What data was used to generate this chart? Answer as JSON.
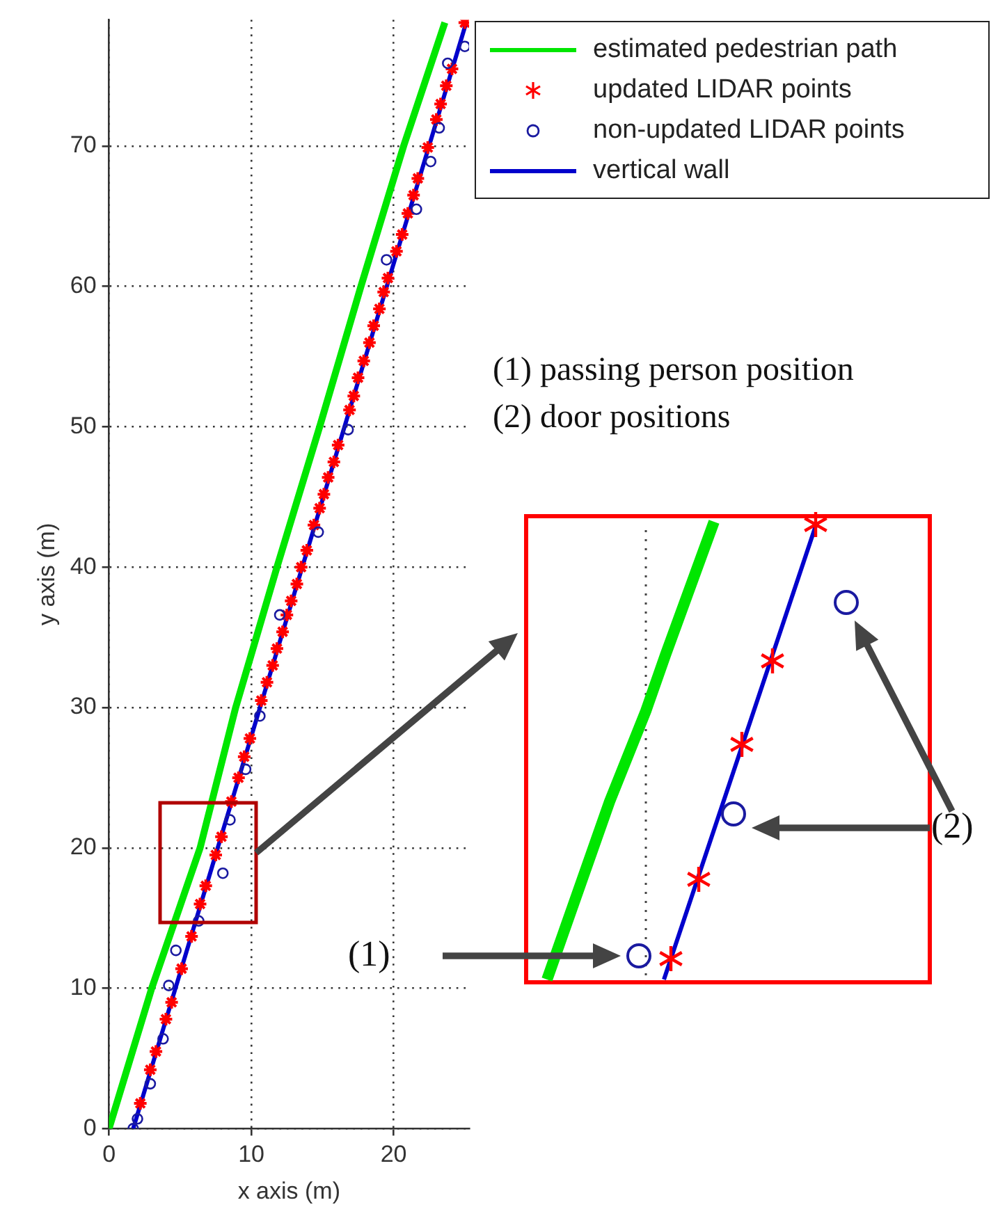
{
  "chart_data": {
    "type": "scatter",
    "xlabel": "x axis (m)",
    "ylabel": "y axis (m)",
    "xlim": [
      0,
      25.3
    ],
    "ylim": [
      0,
      79
    ],
    "xticks": [
      0,
      10,
      20
    ],
    "yticks": [
      0,
      10,
      20,
      30,
      40,
      50,
      60,
      70
    ],
    "grid": true,
    "legend": "top right",
    "annotations": [
      "(1) passing person position",
      "(2) door positions",
      "(1)",
      "(2)"
    ],
    "series": [
      {
        "name": "estimated pedestrian path",
        "type": "line",
        "marker": "none",
        "color": "#00e600",
        "x": [
          0,
          3.0,
          6.4,
          8.9,
          11.8,
          14.8,
          17.7,
          20.7,
          23.6
        ],
        "values": [
          0,
          10,
          20,
          30,
          40,
          50,
          60,
          70,
          78.8
        ]
      },
      {
        "name": "updated LIDAR points",
        "type": "scatter",
        "marker": "cross",
        "color": "#ff0000",
        "x": [
          2.2,
          2.9,
          3.3,
          4.0,
          4.4,
          5.1,
          5.8,
          6.4,
          6.8,
          7.5,
          7.9,
          8.6,
          9.1,
          9.5,
          9.9,
          10.7,
          11.1,
          11.5,
          11.8,
          12.2,
          12.5,
          12.8,
          13.2,
          13.5,
          13.9,
          14.4,
          14.8,
          15.1,
          15.4,
          15.8,
          16.1,
          16.9,
          17.2,
          17.5,
          17.9,
          18.3,
          18.6,
          19.0,
          19.3,
          19.6,
          20.2,
          20.6,
          21.0,
          21.4,
          21.7,
          22.4,
          23.0,
          23.3,
          23.7,
          24.1,
          25.0
        ],
        "values": [
          1.8,
          4.2,
          5.5,
          7.8,
          9.0,
          11.4,
          13.7,
          16.0,
          17.3,
          19.5,
          20.8,
          23.3,
          25.0,
          26.5,
          27.8,
          30.5,
          31.8,
          33.0,
          34.2,
          35.4,
          36.6,
          37.6,
          38.8,
          40.0,
          41.2,
          43.0,
          44.2,
          45.2,
          46.4,
          47.5,
          48.7,
          51.2,
          52.2,
          53.5,
          54.7,
          56.0,
          57.2,
          58.4,
          59.6,
          60.6,
          62.5,
          63.7,
          65.2,
          66.5,
          67.7,
          69.9,
          71.9,
          73.0,
          74.3,
          75.5,
          78.8
        ]
      },
      {
        "name": "non-updated LIDAR points",
        "type": "scatter",
        "marker": "circle",
        "color": "#1a1aa0",
        "x": [
          1.7,
          2.0,
          2.9,
          3.8,
          4.2,
          4.7,
          6.3,
          8.0,
          8.5,
          9.6,
          10.6,
          12.0,
          14.7,
          16.8,
          19.5,
          21.6,
          22.6,
          23.2,
          23.8,
          25.0
        ],
        "values": [
          0,
          0.7,
          3.2,
          6.4,
          10.2,
          12.7,
          14.8,
          18.2,
          22.0,
          25.6,
          29.4,
          36.6,
          42.5,
          49.8,
          61.9,
          65.5,
          68.9,
          71.3,
          75.9,
          77.1
        ]
      },
      {
        "name": "vertical wall",
        "type": "line",
        "marker": "none",
        "color": "#0000cc",
        "x": [
          1.7,
          25.1
        ],
        "values": [
          0,
          78.8
        ]
      }
    ]
  }
}
